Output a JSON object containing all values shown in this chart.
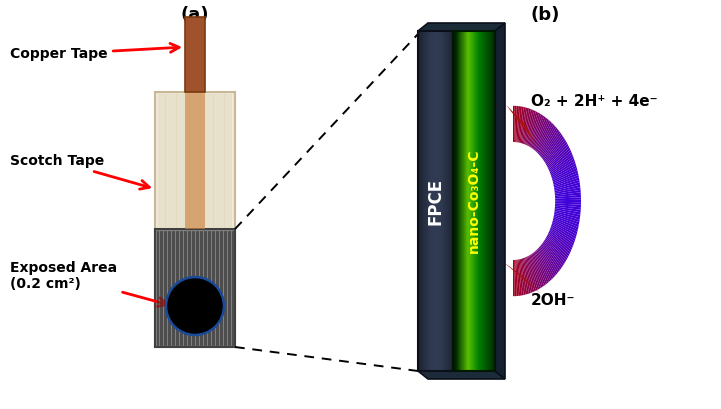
{
  "title_a": "(a)",
  "title_b": "(b)",
  "label_copper": "Copper Tape",
  "label_scotch": "Scotch Tape",
  "label_exposed": "Exposed Area\n(0.2 cm²)",
  "label_fpce": "FPCE",
  "label_nano": "nano-Co₃O₄-C",
  "label_o2": "O₂ + 2H⁺ + 4e⁻",
  "label_oh": "2OH⁻",
  "color_copper_dark": "#7B3A10",
  "color_copper_mid": "#A0522D",
  "color_copper_light": "#CD8540",
  "color_scotch_bg": "#F0EAD6",
  "color_scotch_border": "#C8B89A",
  "color_graphite_bg": "#7A7A7A",
  "color_graphite_stripe": "#404040",
  "color_fpce_dark": "#1E2A38",
  "color_fpce_mid": "#2C3E55",
  "color_nano_dark": "#003300",
  "color_nano_mid": "#006600",
  "color_nano_bright": "#00BB00",
  "bg_color": "#FFFFFF"
}
